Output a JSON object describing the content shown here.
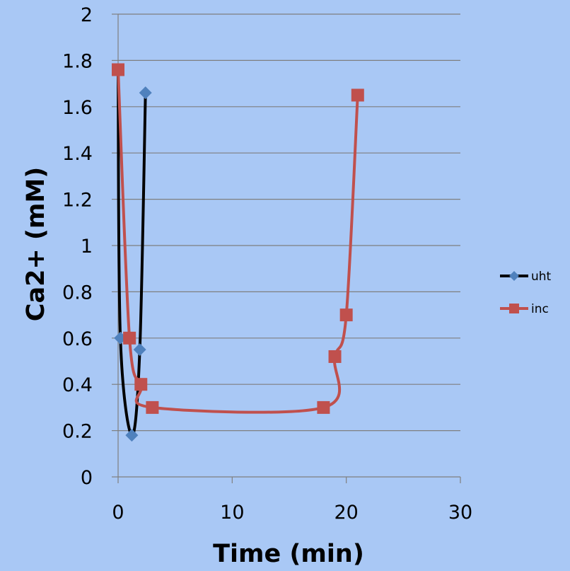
{
  "chart_data": {
    "type": "scatter",
    "title": "",
    "xlabel": "Time (min)",
    "ylabel": "Ca2+ (mM)",
    "xlim": [
      0,
      30
    ],
    "ylim": [
      0,
      2
    ],
    "x_ticks": [
      "0",
      "10",
      "20",
      "30"
    ],
    "y_ticks": [
      "0",
      "0.2",
      "0.4",
      "0.6",
      "0.8",
      "1",
      "1.2",
      "1.4",
      "1.6",
      "1.8",
      "2"
    ],
    "grid": "horizontal",
    "smooth_lines": true,
    "legend_position": "right",
    "series": [
      {
        "name": "uht",
        "color": "#000000",
        "marker": "diamond",
        "marker_color": "#4f81bd",
        "points": [
          [
            0,
            1.76
          ],
          [
            0.2,
            0.6
          ],
          [
            1.2,
            0.18
          ],
          [
            1.9,
            0.55
          ],
          [
            2.4,
            1.66
          ]
        ]
      },
      {
        "name": "inc",
        "color": "#c0504d",
        "marker": "square",
        "marker_color": "#c0504d",
        "points": [
          [
            0,
            1.76
          ],
          [
            1,
            0.6
          ],
          [
            2,
            0.4
          ],
          [
            3,
            0.3
          ],
          [
            18,
            0.3
          ],
          [
            19,
            0.52
          ],
          [
            20,
            0.7
          ],
          [
            21,
            1.65
          ]
        ]
      }
    ]
  }
}
